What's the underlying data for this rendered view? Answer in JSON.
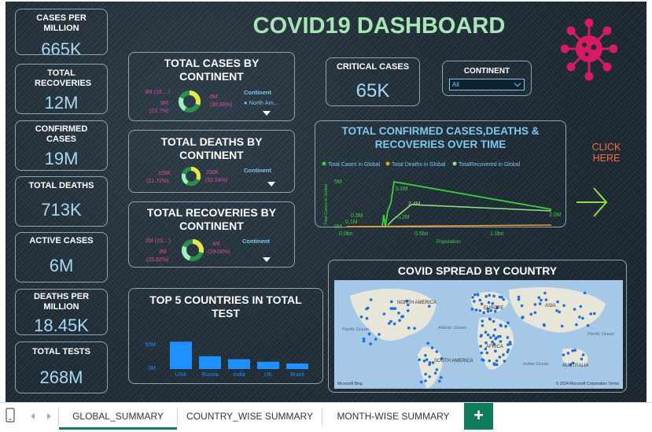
{
  "title": "COVID19 DASHBOARD",
  "kpis": {
    "cases_per_million": {
      "label": "CASES PER MILLION",
      "value": "665K"
    },
    "total_recoveries": {
      "label": "TOTAL RECOVERIES",
      "value": "12M"
    },
    "confirmed_cases": {
      "label": "CONFIRMED CASES",
      "value": "19M"
    },
    "total_deaths": {
      "label": "TOTAL DEATHS",
      "value": "713K"
    },
    "active_cases": {
      "label": "ACTIVE CASES",
      "value": "6M"
    },
    "deaths_per_million": {
      "label": "DEATHS PER MILLION",
      "value": "18.45K"
    },
    "total_tests": {
      "label": "TOTAL TESTS",
      "value": "268M"
    },
    "critical_cases": {
      "label": "CRITICAL CASES",
      "value": "65K"
    }
  },
  "continent_filter": {
    "label": "CONTINENT",
    "selected": "All"
  },
  "donuts": {
    "cases": {
      "title": "TOTAL CASES BY CONTINENT",
      "left_top": "3M (15....)",
      "left_value": "5M",
      "left_pct": "(23.7%)",
      "right_value": "6M",
      "right_pct": "(30.88%)",
      "legend_title": "Continent",
      "legend_item": "North Am..."
    },
    "deaths": {
      "title": "TOTAL DEATHS BY CONTINENT",
      "left_value": "155K",
      "left_pct": "(21.72%)",
      "right_value": "230K",
      "right_pct": "(32.24%)",
      "legend_title": "Continent"
    },
    "recoveries": {
      "title": "TOTAL RECOVERIES BY CONTINENT",
      "left_top": "2M (13....)",
      "left_value": "3M",
      "left_pct": "(25.82%)",
      "right_value": "4M",
      "right_pct": "(29.06%)",
      "legend_title": "Continent"
    }
  },
  "time_chart": {
    "title": "TOTAL CONFIRMED CASES,DEATHS & RECOVERIES OVER TIME",
    "legend": [
      "Total Cases in Global",
      "Total Deaths in Global",
      "TotalRecovered in Global"
    ],
    "ylabel": "Total Cases in Global",
    "xlabel": "Population",
    "yticks": [
      "5M",
      "0M"
    ],
    "xticks": [
      "0.0bn",
      "0.5bn",
      "1.0bn"
    ],
    "labels": {
      "a": "0.5M",
      "b": "0.1M",
      "c": "5.0M",
      "d": "2.4M",
      "e": "0.2M",
      "f": "2.0M"
    }
  },
  "click_here": "CLICK HERE",
  "top5": {
    "title": "TOP 5 COUNTRIES IN TOTAL TEST",
    "yticks": [
      "50M",
      "0M"
    ]
  },
  "chart_data": {
    "type": "bar",
    "categories": [
      "USA",
      "Russia",
      "India",
      "UK",
      "Brazil"
    ],
    "values": [
      64,
      30,
      23,
      17,
      13
    ],
    "ylim": [
      0,
      70
    ],
    "colors": {
      "bar": "#1e90ff"
    }
  },
  "map": {
    "title": "COVID SPREAD BY COUNTRY",
    "labels": [
      "NORTH AMERICA",
      "EUROPE",
      "ASIA",
      "AFRICA",
      "SOUTH AMERICA",
      "AUSTRALIA",
      "Atlantic Ocean",
      "Pacific Ocean",
      "Pacific Ocean",
      "Indian Ocean"
    ],
    "credit_left": "Microsoft Bing",
    "credit_right": "© 2024 Microsoft Corporation  Terms"
  },
  "tabs": [
    "GLOBAL_SUMMARY",
    "COUNTRY_WISE SUMMARY",
    "MONTH-WISE SUMMARY"
  ],
  "add_tab": "+",
  "colors": {
    "title": "#a8e6b8",
    "value": "#a9d8f5",
    "virus": "#d81b60",
    "cases_line": "#3ecf3e",
    "deaths_line": "#f0a020",
    "recovered_line": "#9be08a"
  }
}
